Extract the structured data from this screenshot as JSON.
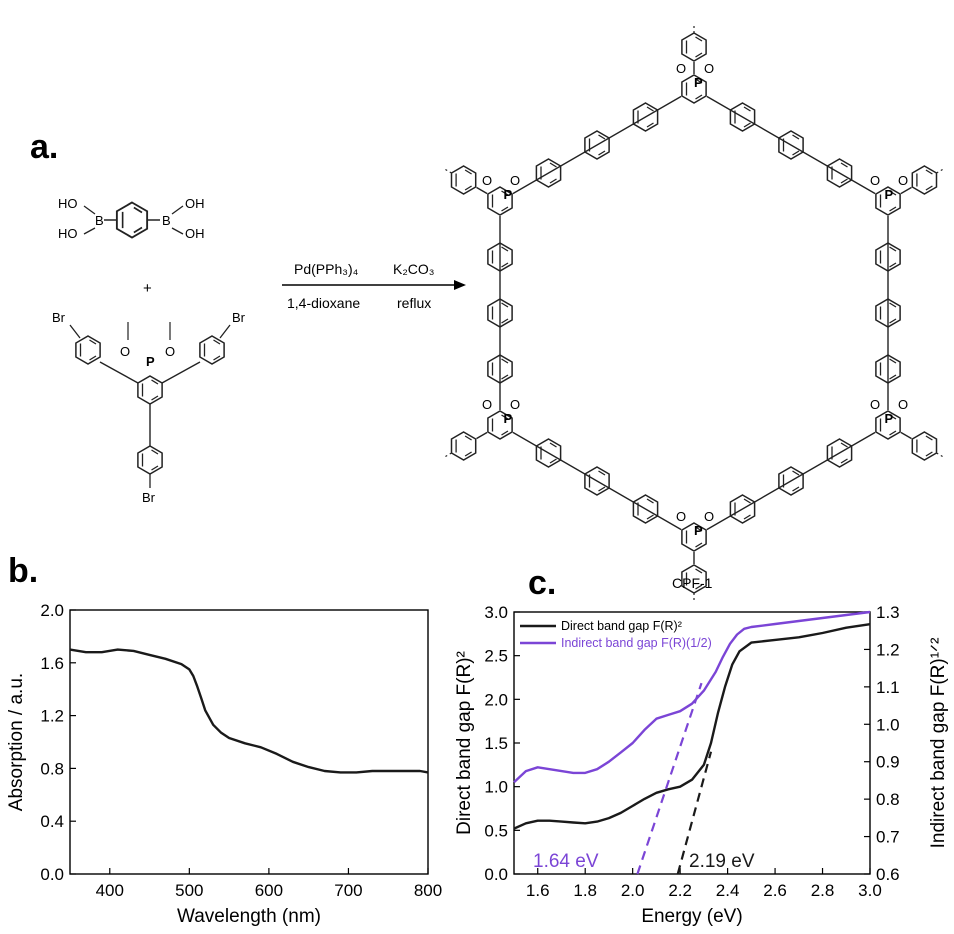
{
  "figure": {
    "panel_labels": [
      "a.",
      "b.",
      "c."
    ]
  },
  "scheme": {
    "reactant1": {
      "oh1": "HO",
      "oh2": "HO",
      "oh3": "OH",
      "oh4": "OH",
      "b1": "B",
      "b2": "B"
    },
    "plus": "+",
    "reactant2": {
      "br1": "Br",
      "br2": "Br",
      "br3": "Br",
      "o1": "O",
      "o2": "O",
      "p": "P"
    },
    "reagents": {
      "catalyst": "Pd(PPh₃)₄",
      "base": "K₂CO₃",
      "solvent": "1,4-dioxane",
      "condition": "reflux"
    },
    "product": {
      "name": "CPF-1",
      "p_label": "P",
      "o_label": "O"
    }
  },
  "colors": {
    "black_series": "#1a1a1a",
    "purple_series": "#7b45d6",
    "axis": "#000000"
  },
  "chart_data": [
    {
      "type": "line",
      "xlabel": "Wavelength (nm)",
      "ylabel": "Absorption / a.u.",
      "xlim": [
        350,
        800
      ],
      "ylim": [
        0.0,
        2.0
      ],
      "xticks": [
        "400",
        "500",
        "600",
        "700",
        "800"
      ],
      "yticks": [
        "0.0",
        "0.4",
        "0.8",
        "1.2",
        "1.6",
        "2.0"
      ],
      "grid": false,
      "series": [
        {
          "color": "#1a1a1a",
          "x": [
            350,
            370,
            390,
            410,
            430,
            450,
            470,
            490,
            500,
            505,
            510,
            515,
            520,
            530,
            540,
            550,
            570,
            590,
            610,
            630,
            650,
            670,
            690,
            710,
            730,
            750,
            770,
            790,
            800
          ],
          "y": [
            1.7,
            1.68,
            1.68,
            1.7,
            1.69,
            1.66,
            1.63,
            1.59,
            1.55,
            1.5,
            1.42,
            1.33,
            1.24,
            1.13,
            1.07,
            1.03,
            0.99,
            0.96,
            0.91,
            0.85,
            0.81,
            0.78,
            0.77,
            0.77,
            0.78,
            0.78,
            0.78,
            0.78,
            0.77
          ]
        }
      ]
    },
    {
      "type": "line",
      "xlabel": "Energy (eV)",
      "ylabel": "Direct band gap F(R)²",
      "y2label": "Indirect band gap F(R)¹ᐟ²",
      "xlim": [
        1.5,
        3.0
      ],
      "ylim": [
        0.0,
        3.0
      ],
      "y2lim": [
        0.6,
        1.3
      ],
      "xticks": [
        "1.6",
        "1.8",
        "2.0",
        "2.2",
        "2.4",
        "2.6",
        "2.8",
        "3.0"
      ],
      "yticks": [
        "0.0",
        "0.5",
        "1.0",
        "1.5",
        "2.0",
        "2.5",
        "3.0"
      ],
      "y2ticks": [
        "0.6",
        "0.7",
        "0.8",
        "0.9",
        "1.0",
        "1.1",
        "1.2",
        "1.3"
      ],
      "legend_position": "top-left",
      "series": [
        {
          "name": "Direct band gap F(R)²",
          "axis": "left",
          "color": "#1a1a1a",
          "x": [
            1.5,
            1.55,
            1.6,
            1.65,
            1.7,
            1.75,
            1.8,
            1.85,
            1.9,
            1.95,
            2.0,
            2.05,
            2.1,
            2.15,
            2.2,
            2.25,
            2.3,
            2.33,
            2.36,
            2.39,
            2.42,
            2.45,
            2.5,
            2.6,
            2.7,
            2.8,
            2.9,
            3.0
          ],
          "y": [
            0.52,
            0.58,
            0.61,
            0.61,
            0.6,
            0.59,
            0.58,
            0.6,
            0.64,
            0.7,
            0.78,
            0.86,
            0.93,
            0.97,
            1.0,
            1.08,
            1.25,
            1.5,
            1.85,
            2.15,
            2.4,
            2.55,
            2.65,
            2.68,
            2.71,
            2.76,
            2.82,
            2.86
          ]
        },
        {
          "name": "Indirect band gap F(R)(1/2)",
          "axis": "right",
          "color": "#7b45d6",
          "x": [
            1.5,
            1.55,
            1.6,
            1.65,
            1.7,
            1.75,
            1.8,
            1.85,
            1.9,
            1.95,
            2.0,
            2.05,
            2.1,
            2.15,
            2.2,
            2.25,
            2.3,
            2.35,
            2.38,
            2.41,
            2.44,
            2.47,
            2.5,
            2.6,
            2.7,
            2.8,
            2.9,
            3.0
          ],
          "y": [
            0.845,
            0.875,
            0.885,
            0.88,
            0.875,
            0.87,
            0.87,
            0.88,
            0.9,
            0.925,
            0.95,
            0.985,
            1.015,
            1.025,
            1.035,
            1.055,
            1.09,
            1.14,
            1.18,
            1.215,
            1.24,
            1.255,
            1.26,
            1.268,
            1.276,
            1.284,
            1.292,
            1.3
          ]
        }
      ],
      "tangents": [
        {
          "color": "#7b45d6",
          "axis": "right",
          "x": [
            2.02,
            2.29
          ],
          "y": [
            0.6,
            1.11
          ],
          "label": "1.64 eV"
        },
        {
          "color": "#1a1a1a",
          "axis": "left",
          "x": [
            2.19,
            2.33
          ],
          "y": [
            0.0,
            1.4
          ],
          "label": "2.19 eV"
        }
      ]
    }
  ]
}
